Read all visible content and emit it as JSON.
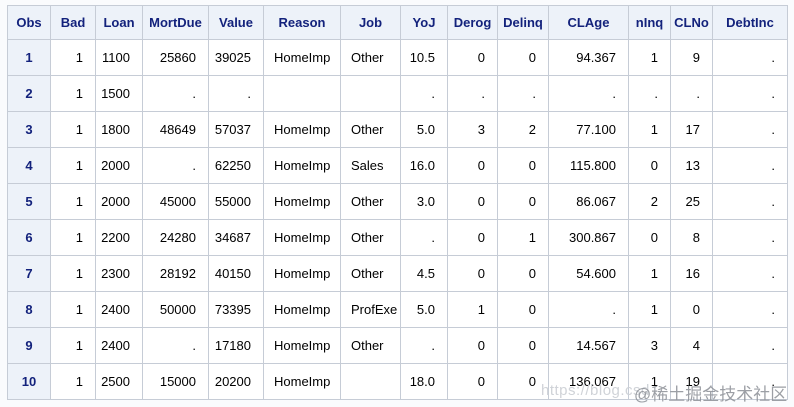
{
  "table": {
    "columns": [
      "Obs",
      "Bad",
      "Loan",
      "MortDue",
      "Value",
      "Reason",
      "Job",
      "YoJ",
      "Derog",
      "Delinq",
      "CLAge",
      "nInq",
      "CLNo",
      "DebtInc"
    ],
    "rows": [
      [
        "1",
        "1",
        "1100",
        "25860",
        "39025",
        "HomeImp",
        "Other",
        "10.5",
        "0",
        "0",
        "94.367",
        "1",
        "9",
        "."
      ],
      [
        "2",
        "1",
        "1500",
        ".",
        ".",
        "",
        "",
        ".",
        ".",
        ".",
        ".",
        ".",
        ".",
        "."
      ],
      [
        "3",
        "1",
        "1800",
        "48649",
        "57037",
        "HomeImp",
        "Other",
        "5.0",
        "3",
        "2",
        "77.100",
        "1",
        "17",
        "."
      ],
      [
        "4",
        "1",
        "2000",
        ".",
        "62250",
        "HomeImp",
        "Sales",
        "16.0",
        "0",
        "0",
        "115.800",
        "0",
        "13",
        "."
      ],
      [
        "5",
        "1",
        "2000",
        "45000",
        "55000",
        "HomeImp",
        "Other",
        "3.0",
        "0",
        "0",
        "86.067",
        "2",
        "25",
        "."
      ],
      [
        "6",
        "1",
        "2200",
        "24280",
        "34687",
        "HomeImp",
        "Other",
        ".",
        "0",
        "1",
        "300.867",
        "0",
        "8",
        "."
      ],
      [
        "7",
        "1",
        "2300",
        "28192",
        "40150",
        "HomeImp",
        "Other",
        "4.5",
        "0",
        "0",
        "54.600",
        "1",
        "16",
        "."
      ],
      [
        "8",
        "1",
        "2400",
        "50000",
        "73395",
        "HomeImp",
        "ProfExe",
        "5.0",
        "1",
        "0",
        ".",
        "1",
        "0",
        "."
      ],
      [
        "9",
        "1",
        "2400",
        ".",
        "17180",
        "HomeImp",
        "Other",
        ".",
        "0",
        "0",
        "14.567",
        "3",
        "4",
        "."
      ],
      [
        "10",
        "1",
        "2500",
        "15000",
        "20200",
        "HomeImp",
        "",
        "18.0",
        "0",
        "0",
        "136.067",
        "1",
        "19",
        "."
      ]
    ],
    "text_column_indexes": [
      5,
      6
    ]
  },
  "watermark": {
    "url_text": "https://blog.csd",
    "site_text": "@稀土掘金技术社区"
  },
  "colors": {
    "header_bg": "#edf2f9",
    "header_text": "#13227c",
    "inner_border": "#c6ccd6",
    "outer_border": "#a3aab4",
    "page_bg": "#fafbfd"
  }
}
